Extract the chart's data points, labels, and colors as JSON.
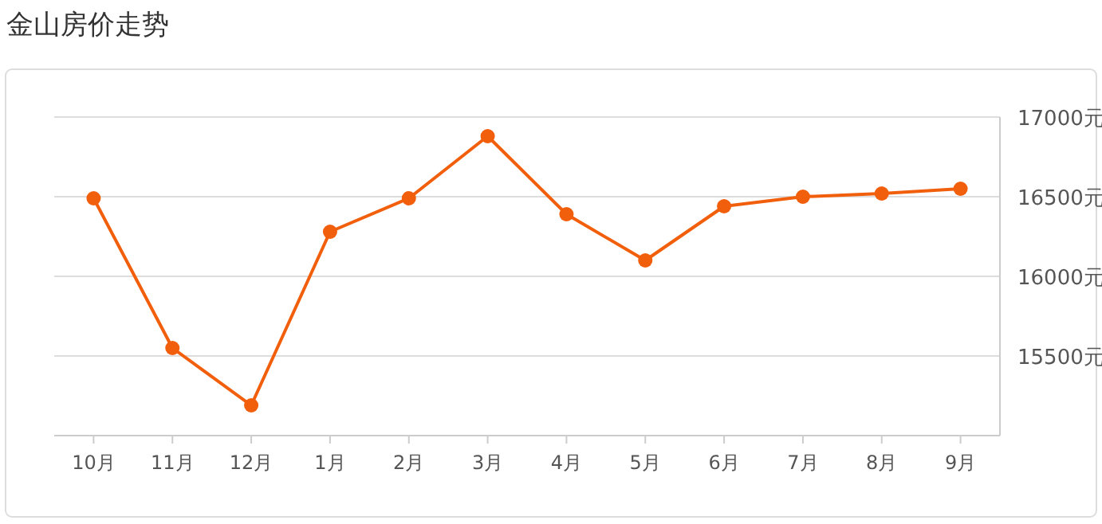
{
  "chart_data": {
    "type": "line",
    "title": "金山房价走势",
    "categories": [
      "10月",
      "11月",
      "12月",
      "1月",
      "2月",
      "3月",
      "4月",
      "5月",
      "6月",
      "7月",
      "8月",
      "9月"
    ],
    "series": [
      {
        "color": "#f25f0c",
        "values": [
          16490,
          15550,
          15190,
          16280,
          16490,
          16880,
          16390,
          16100,
          16440,
          16500,
          16520,
          16550
        ]
      }
    ],
    "ylim": [
      15000,
      17000
    ],
    "yticks": [
      {
        "value": 15500,
        "label": "15500元"
      },
      {
        "value": 16000,
        "label": "16000元"
      },
      {
        "value": 16500,
        "label": "16500元"
      },
      {
        "value": 17000,
        "label": "17000元"
      }
    ],
    "grid": "y",
    "marker": "circle",
    "line_style": "solid"
  }
}
